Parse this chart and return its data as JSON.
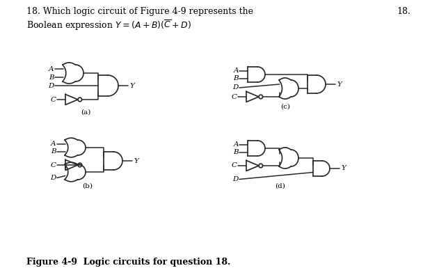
{
  "bg_color": "#ffffff",
  "gate_color": "#2a2a2a",
  "wire_color": "#2a2a2a",
  "text_color": "#000000",
  "title1": "18. Which logic circuit of Figure 4-9 represents the",
  "title_num": "18.",
  "title2": "Boolean expression $Y=(A+B)(\\overline{C}+D)$",
  "caption": "Figure 4-9  Logic circuits for question 18.",
  "sub_labels": [
    "(a)",
    "(b)",
    "(c)",
    "(d)"
  ],
  "figsize": [
    6.31,
    3.95
  ],
  "dpi": 100
}
